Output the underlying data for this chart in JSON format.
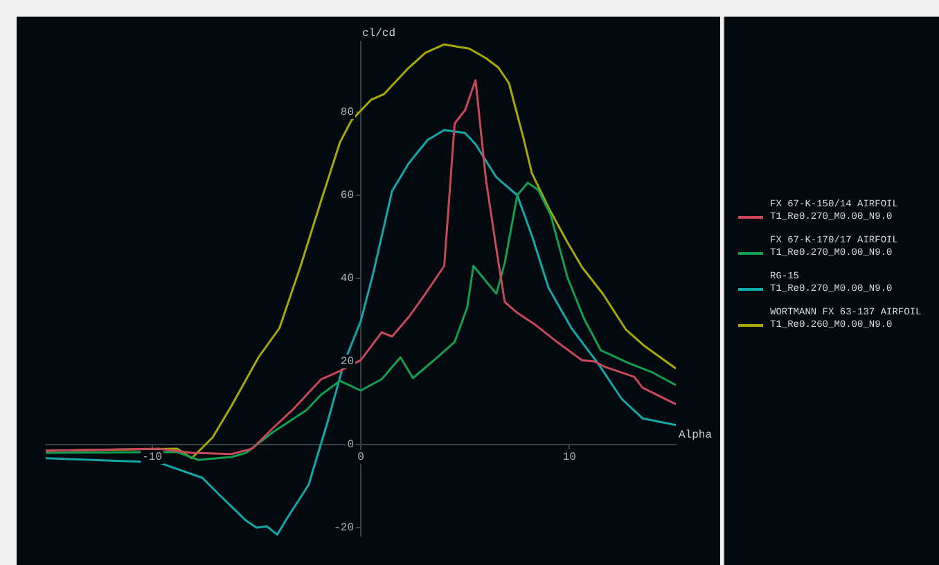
{
  "chart_data": {
    "type": "line",
    "xlabel": "Alpha",
    "ylabel": "cl/cd",
    "xlim": [
      -15.1,
      15.1
    ],
    "ylim": [
      -22,
      97
    ],
    "xticks": [
      -10,
      0,
      10
    ],
    "yticks": [
      -20,
      0,
      20,
      40,
      60,
      80
    ],
    "grid": false,
    "legend": "right",
    "marker": "none",
    "line_style": "solid",
    "series": [
      {
        "name": "FX 67-K-150/14 AIRFOIL\nT1_Re0.270_M0.00_N9.0",
        "color": "#c8485a",
        "x": [
          -15.1,
          -9.7,
          -8.1,
          -6.2,
          -5.2,
          -4.2,
          -3.2,
          -1.9,
          -1.0,
          0,
          1.0,
          1.5,
          2.3,
          3.1,
          4.0,
          4.5,
          5.0,
          5.5,
          6.0,
          6.5,
          6.9,
          7.5,
          8.4,
          9.4,
          10.6,
          11.2,
          11.7,
          13.1,
          13.5,
          15.1
        ],
        "values": [
          -1.5,
          -1,
          -2,
          -2.3,
          -1,
          4,
          8.7,
          15.7,
          17.7,
          20.3,
          27,
          26,
          30.7,
          36.3,
          43,
          77.3,
          80.5,
          87.7,
          63.7,
          47,
          34.3,
          31.7,
          28.7,
          24.7,
          20.3,
          20,
          18.7,
          16.3,
          13.7,
          9.7
        ]
      },
      {
        "name": "FX 67-K-170/17 AIRFOIL\nT1_Re0.270_M0.00_N9.0",
        "color": "#10a050",
        "x": [
          -15.1,
          -8.8,
          -7.8,
          -6.2,
          -5.5,
          -4.2,
          -2.6,
          -1.9,
          -1.0,
          0,
          1.0,
          1.9,
          2.5,
          3.6,
          4.5,
          5.1,
          5.4,
          6.0,
          6.5,
          6.9,
          7.5,
          8.0,
          8.5,
          9.1,
          9.9,
          10.7,
          11.5,
          12.8,
          14.0,
          15.1
        ],
        "values": [
          -2,
          -1.8,
          -3.7,
          -3,
          -2,
          3,
          8.3,
          12,
          15.3,
          13,
          15.7,
          21,
          16,
          20.7,
          24.7,
          33,
          43,
          39.3,
          36.3,
          43.7,
          60,
          63,
          61.3,
          55.3,
          40.3,
          30.3,
          22.7,
          19.7,
          17.3,
          14.3
        ]
      },
      {
        "name": "RG-15\nT1_Re0.270_M0.00_N9.0",
        "color": "#10a8a8",
        "x": [
          -15.1,
          -9.7,
          -7.6,
          -6.8,
          -5.5,
          -5.0,
          -4.5,
          -4.0,
          -3.6,
          -2.5,
          -1.6,
          -0.8,
          0,
          0.6,
          1.5,
          2.3,
          3.2,
          4.0,
          5.0,
          5.5,
          6.5,
          7.5,
          8.2,
          9.0,
          10.1,
          11.4,
          12.5,
          13.5,
          15.1
        ],
        "values": [
          -3.3,
          -4.3,
          -8,
          -12,
          -18.3,
          -20,
          -19.7,
          -21.7,
          -18.3,
          -9.7,
          5.3,
          19.7,
          29.7,
          41.3,
          61,
          67.7,
          73.3,
          75.7,
          75,
          72.3,
          64.3,
          60,
          50.3,
          37.7,
          28,
          19.3,
          11,
          6.3,
          4.7
        ]
      },
      {
        "name": "WORTMANN FX 63-137 AIRFOIL\nT1_Re0.260_M0.00_N9.0",
        "color": "#a8a800",
        "x": [
          -15.1,
          -8.8,
          -8.1,
          -7.1,
          -6.2,
          -4.9,
          -3.9,
          -2.9,
          -1.9,
          -1.0,
          -0.45,
          0.5,
          1.1,
          2.3,
          3.1,
          4.0,
          4.7,
          5.2,
          6.0,
          6.6,
          7.1,
          7.8,
          8.2,
          9.0,
          9.9,
          10.6,
          11.6,
          12.7,
          13.6,
          15.1
        ],
        "values": [
          -1.5,
          -1,
          -3.3,
          1.7,
          9.3,
          21,
          28,
          42.7,
          58.7,
          72.7,
          78,
          83,
          84.3,
          90.7,
          94.3,
          96.3,
          95.7,
          95.3,
          93,
          90.7,
          87,
          73.7,
          65.3,
          57,
          48.7,
          42.7,
          36.3,
          27.7,
          23.7,
          18.3
        ]
      }
    ]
  }
}
